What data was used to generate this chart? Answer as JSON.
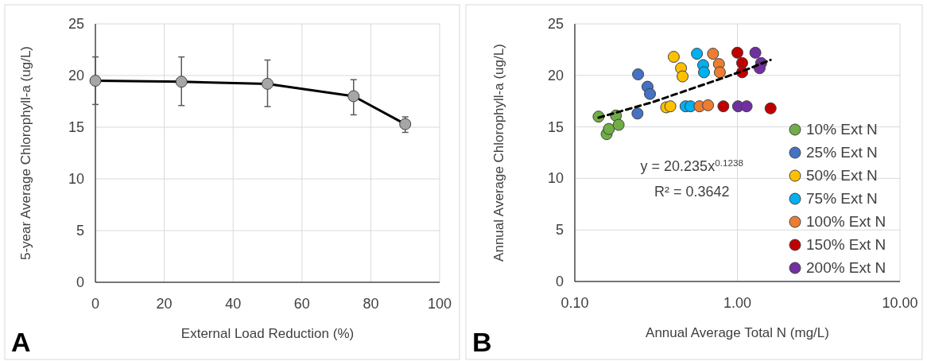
{
  "chart_data": [
    {
      "type": "line",
      "xlabel": "External Load Reduction (%)",
      "ylabel": "5-year Average Chlorophyll-a (ug/L)",
      "x": [
        0,
        25,
        50,
        75,
        90
      ],
      "series": [
        {
          "color": "#000000",
          "values": [
            19.5,
            19.4,
            19.2,
            18.0,
            15.3
          ],
          "errors": [
            [
              17.2,
              21.8
            ],
            [
              17.1,
              21.8
            ],
            [
              17.0,
              21.5
            ],
            [
              16.2,
              19.6
            ],
            [
              14.5,
              16.0
            ]
          ]
        }
      ],
      "marker": "circle",
      "xlim": [
        0,
        100
      ],
      "xticks": [
        0,
        20,
        40,
        60,
        80,
        100
      ],
      "ylim": [
        0,
        25
      ],
      "yticks": [
        0,
        5,
        10,
        15,
        20,
        25
      ],
      "grid": true,
      "legend": false,
      "annotations": [
        "A"
      ]
    },
    {
      "type": "scatter",
      "xlabel": "Annual Average Total N (mg/L)",
      "ylabel": "Annual Average Chlorophyll-a (ug/L)",
      "log": "x",
      "series": [
        {
          "name": "10% Ext N",
          "color": "#70ad47",
          "x": [
            0.14,
            0.157,
            0.162,
            0.179,
            0.186
          ],
          "values": [
            16.0,
            14.3,
            14.8,
            16.1,
            15.2
          ]
        },
        {
          "name": "25% Ext N",
          "color": "#4472c4",
          "x": [
            0.245,
            0.28,
            0.29,
            0.243
          ],
          "values": [
            20.1,
            18.9,
            18.2,
            16.3
          ]
        },
        {
          "name": "50% Ext N",
          "color": "#ffc000",
          "x": [
            0.406,
            0.45,
            0.46,
            0.365,
            0.387
          ],
          "values": [
            21.8,
            20.7,
            19.9,
            16.9,
            17.0
          ]
        },
        {
          "name": "75% Ext N",
          "color": "#00b0f0",
          "x": [
            0.564,
            0.616,
            0.623,
            0.48,
            0.515
          ],
          "values": [
            22.1,
            21.0,
            20.3,
            17.0,
            17.0
          ]
        },
        {
          "name": "100% Ext N",
          "color": "#ed7d31",
          "x": [
            0.708,
            0.77,
            0.78,
            0.585,
            0.66
          ],
          "values": [
            22.1,
            21.1,
            20.3,
            17.0,
            17.1
          ]
        },
        {
          "name": "150% Ext N",
          "color": "#c00000",
          "x": [
            1.0,
            1.07,
            1.07,
            0.82,
            1.6
          ],
          "values": [
            22.2,
            21.2,
            20.3,
            17.0,
            16.8
          ]
        },
        {
          "name": "200% Ext N",
          "color": "#7030a0",
          "x": [
            1.29,
            1.4,
            1.37,
            1.01,
            1.14
          ],
          "values": [
            22.2,
            21.2,
            20.7,
            17.0,
            17.0
          ]
        },
        {
          "type": "line",
          "color": "#000000",
          "line_style": "dashed",
          "marker": "none",
          "x": [
            0.14,
            0.2,
            0.3,
            0.5,
            0.8,
            1.2,
            1.6
          ],
          "values": [
            15.9,
            16.6,
            17.4,
            18.6,
            19.7,
            20.7,
            21.5
          ]
        }
      ],
      "marker": "circle",
      "xlim": [
        0.1,
        10
      ],
      "xticks": [
        {
          "value": 0.1,
          "label": "0.10"
        },
        {
          "value": 1,
          "label": "1.00"
        },
        {
          "value": 10,
          "label": "10.00"
        }
      ],
      "ylim": [
        0,
        25
      ],
      "yticks": [
        0,
        5,
        10,
        15,
        20,
        25
      ],
      "grid": true,
      "legend": "bottom right",
      "annotations": [
        "y = 20.235x$^{0.1238}$",
        "R² = 0.3642",
        "B"
      ]
    }
  ]
}
